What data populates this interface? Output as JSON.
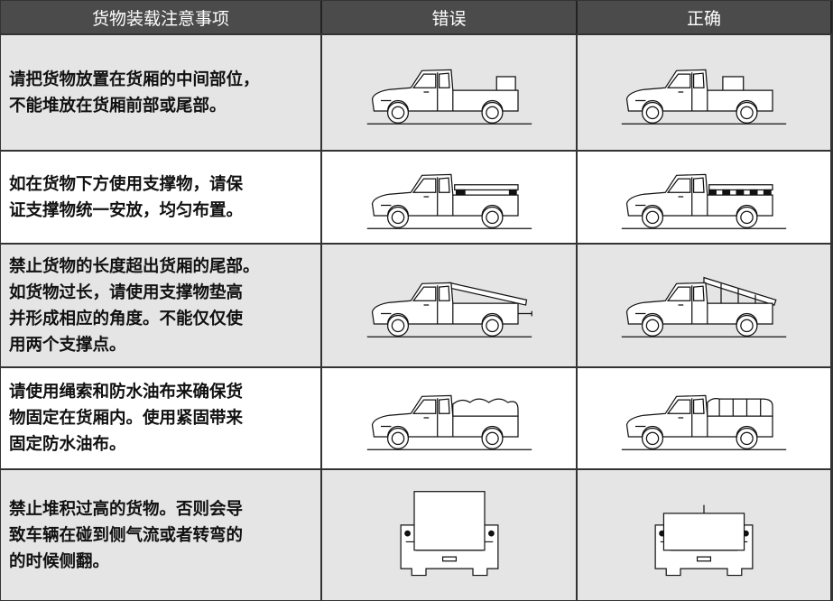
{
  "table": {
    "header": [
      "货物装载注意事项",
      "错误",
      "正确"
    ],
    "rows": [
      {
        "text": [
          "请把货物放置在货厢的中间部位，",
          "不能堆放在货厢前部或尾部。"
        ]
      },
      {
        "text": [
          "如在货物下方使用支撑物，请保",
          "证支撑物统一安放，均匀布置。"
        ]
      },
      {
        "text": [
          "禁止货物的长度超出货厢的尾部。",
          "如货物过长，请使用支撑物垫高",
          "并形成相应的角度。不能仅仅使",
          "用两个支撑点。"
        ]
      },
      {
        "text": [
          "请使用绳索和防水油布来确保货",
          "物固定在货厢内。使用紧固带来",
          "固定防水油布。"
        ]
      },
      {
        "text": [
          "禁止堆积过高的货物。否则会导",
          "致车辆在碰到侧气流或者转弯的",
          "的时候侧翻。"
        ]
      }
    ]
  }
}
